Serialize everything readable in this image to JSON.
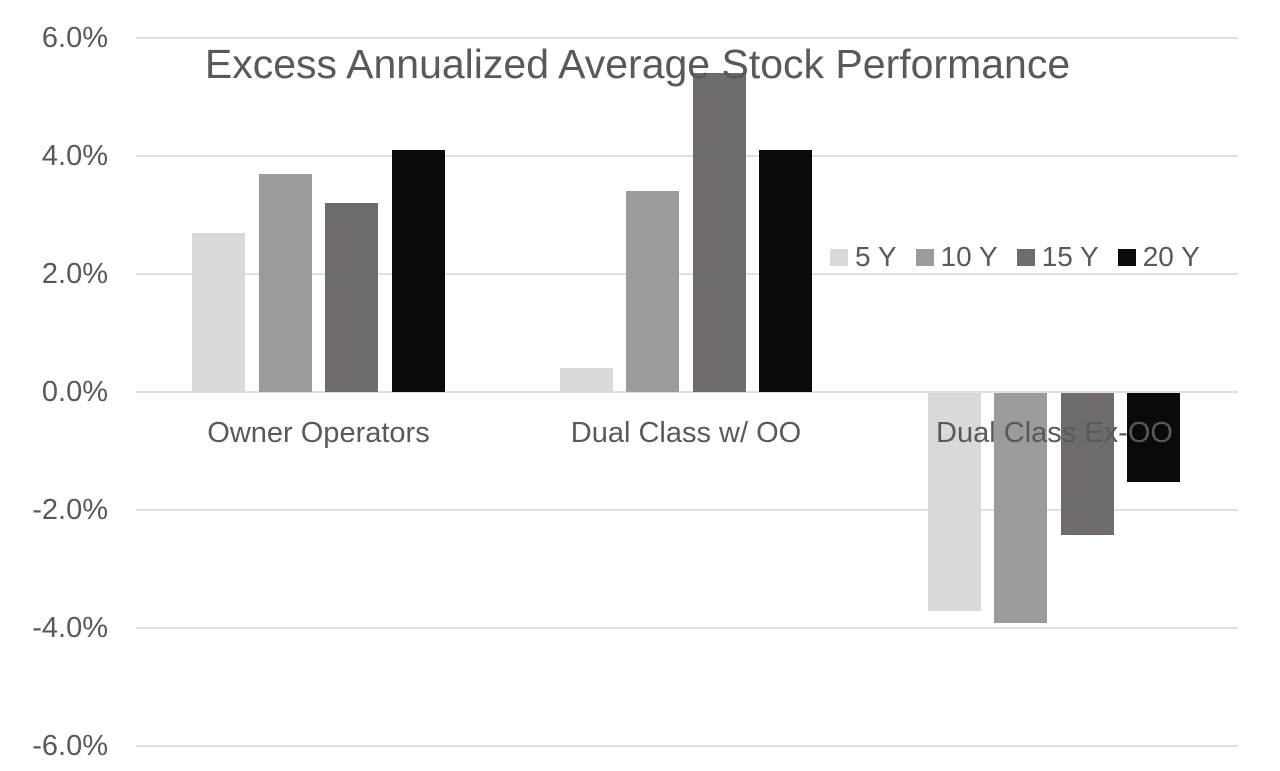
{
  "chart_data": {
    "type": "bar",
    "title": "Excess Annualized Average Stock Performance",
    "unit": "%",
    "categories": [
      "Owner Operators",
      "Dual Class w/ OO",
      "Dual Class Ex-OO"
    ],
    "series": [
      {
        "name": "5 Y",
        "color": "#d9d9d9",
        "values": [
          2.7,
          0.4,
          -3.7
        ]
      },
      {
        "name": "10 Y",
        "color": "#9b9b9b",
        "values": [
          3.7,
          3.4,
          -3.9
        ]
      },
      {
        "name": "15 Y",
        "color": "#6f6b6b",
        "values": [
          3.2,
          5.4,
          -2.4
        ]
      },
      {
        "name": "20 Y",
        "color": "#0a0a0a",
        "values": [
          4.1,
          4.1,
          -1.5
        ]
      }
    ],
    "y_axis": {
      "tick_labels": [
        "6.0%",
        "4.0%",
        "2.0%",
        "0.0%",
        "-2.0%",
        "-4.0%",
        "-6.0%"
      ],
      "tick_values": [
        6,
        4,
        2,
        0,
        -2,
        -4,
        -6
      ]
    },
    "ylim": [
      -6.4,
      6.6
    ],
    "grid": true,
    "legend_position": "middle-right",
    "text_color": "#595959",
    "gridline_color": "#e0e0e0",
    "background_color": "#ffffff"
  }
}
